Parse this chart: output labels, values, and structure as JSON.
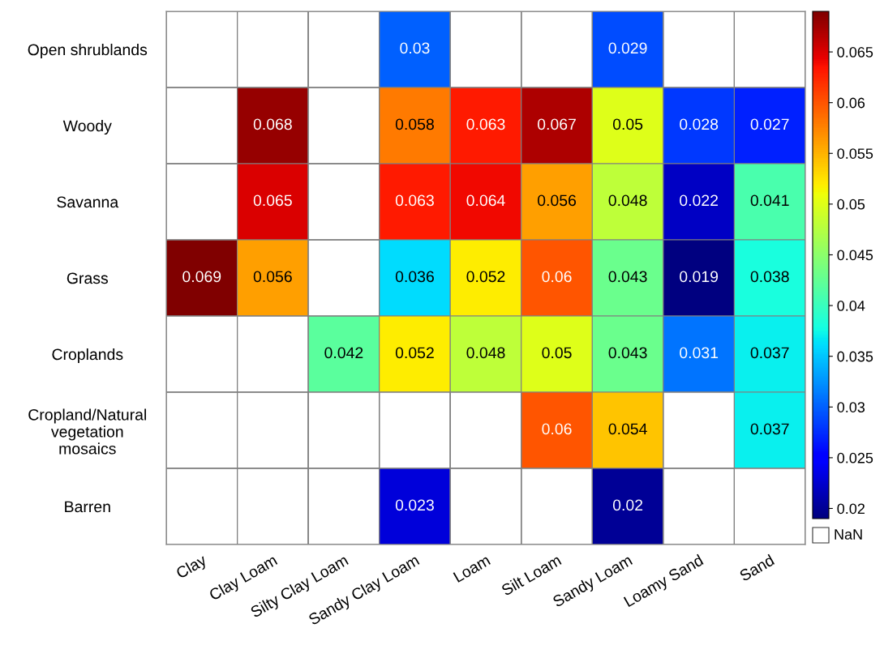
{
  "chart_data": {
    "type": "heatmap",
    "categories": [
      "Clay",
      "Clay Loam",
      "Silty Clay Loam",
      "Sandy Clay Loam",
      "Loam",
      "Silt Loam",
      "Sandy Loam",
      "Loamy Sand",
      "Sand"
    ],
    "y_categories": [
      "Open shrublands",
      "Woody",
      "Savanna",
      "Grass",
      "Croplands",
      "Cropland/Natural\nvegetation\nmosaics",
      "Barren"
    ],
    "cells": [
      [
        null,
        null,
        null,
        0.03,
        null,
        null,
        0.029,
        null,
        null
      ],
      [
        null,
        0.068,
        null,
        0.058,
        0.063,
        0.067,
        0.05,
        0.028,
        0.027
      ],
      [
        null,
        0.065,
        null,
        0.063,
        0.064,
        0.056,
        0.048,
        0.022,
        0.041
      ],
      [
        0.069,
        0.056,
        null,
        0.036,
        0.052,
        0.06,
        0.043,
        0.019,
        0.038
      ],
      [
        null,
        null,
        0.042,
        0.052,
        0.048,
        0.05,
        0.043,
        0.031,
        0.037
      ],
      [
        null,
        null,
        null,
        null,
        null,
        0.06,
        0.054,
        null,
        0.037
      ],
      [
        null,
        null,
        null,
        0.023,
        null,
        null,
        0.02,
        null,
        null
      ]
    ],
    "clim": [
      0.019,
      0.069
    ],
    "cticks": [
      0.02,
      0.025,
      0.03,
      0.035,
      0.04,
      0.045,
      0.05,
      0.055,
      0.06,
      0.065
    ],
    "data_labels": true,
    "annotations": [
      "NaN"
    ]
  }
}
